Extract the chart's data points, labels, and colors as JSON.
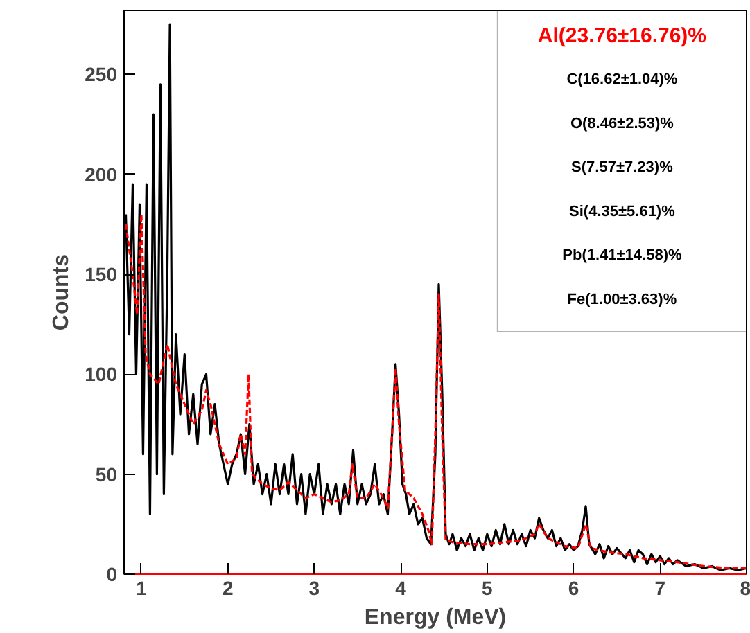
{
  "chart_data": {
    "type": "line",
    "xlabel": "Energy (MeV)",
    "ylabel": "Counts",
    "xlim": [
      0.8,
      8
    ],
    "ylim": [
      0,
      282
    ],
    "xticks": [
      1,
      2,
      3,
      4,
      5,
      6,
      7,
      8
    ],
    "yticks": [
      0,
      50,
      100,
      150,
      200,
      250
    ],
    "grid": false,
    "annotations": [
      "Al(23.76±16.76)%",
      "C(16.62±1.04)%",
      "O(8.46±2.53)%",
      "S(7.57±7.23)%",
      "Si(4.35±5.61)%",
      "Pb(1.41±14.58)%",
      "Fe(1.00±3.63)%"
    ],
    "series": [
      {
        "color": "#000000",
        "line_style": "solid",
        "x": [
          0.82,
          0.86,
          0.9,
          0.94,
          0.98,
          1.02,
          1.06,
          1.1,
          1.14,
          1.18,
          1.22,
          1.26,
          1.3,
          1.33,
          1.36,
          1.4,
          1.45,
          1.5,
          1.55,
          1.6,
          1.65,
          1.7,
          1.75,
          1.8,
          1.85,
          1.9,
          1.95,
          2.0,
          2.05,
          2.1,
          2.15,
          2.2,
          2.25,
          2.3,
          2.35,
          2.4,
          2.45,
          2.5,
          2.55,
          2.6,
          2.65,
          2.7,
          2.75,
          2.8,
          2.85,
          2.9,
          2.95,
          3.0,
          3.05,
          3.1,
          3.15,
          3.2,
          3.25,
          3.3,
          3.35,
          3.4,
          3.45,
          3.5,
          3.55,
          3.6,
          3.65,
          3.7,
          3.75,
          3.8,
          3.85,
          3.9,
          3.94,
          3.98,
          4.02,
          4.06,
          4.1,
          4.15,
          4.2,
          4.25,
          4.3,
          4.35,
          4.4,
          4.44,
          4.48,
          4.52,
          4.56,
          4.6,
          4.65,
          4.7,
          4.75,
          4.8,
          4.85,
          4.9,
          4.95,
          5.0,
          5.05,
          5.1,
          5.15,
          5.2,
          5.25,
          5.3,
          5.35,
          5.4,
          5.45,
          5.5,
          5.55,
          5.6,
          5.65,
          5.7,
          5.75,
          5.8,
          5.85,
          5.9,
          5.95,
          6.0,
          6.05,
          6.1,
          6.14,
          6.18,
          6.25,
          6.3,
          6.35,
          6.4,
          6.45,
          6.5,
          6.6,
          6.65,
          6.7,
          6.75,
          6.8,
          6.85,
          6.9,
          6.95,
          7.0,
          7.05,
          7.1,
          7.15,
          7.2,
          7.3,
          7.4,
          7.5,
          7.6,
          7.7,
          7.8,
          7.9,
          8.0
        ],
        "values": [
          180,
          120,
          195,
          100,
          185,
          60,
          195,
          30,
          230,
          50,
          245,
          40,
          150,
          275,
          60,
          120,
          80,
          110,
          70,
          90,
          65,
          95,
          100,
          70,
          85,
          65,
          55,
          45,
          55,
          60,
          70,
          50,
          75,
          45,
          55,
          40,
          50,
          35,
          55,
          40,
          55,
          40,
          60,
          35,
          50,
          30,
          50,
          40,
          55,
          30,
          45,
          35,
          45,
          30,
          45,
          35,
          62,
          35,
          45,
          35,
          40,
          55,
          35,
          40,
          30,
          70,
          105,
          80,
          45,
          40,
          30,
          35,
          25,
          28,
          18,
          15,
          60,
          145,
          90,
          20,
          15,
          20,
          12,
          18,
          14,
          20,
          12,
          18,
          12,
          20,
          14,
          22,
          15,
          25,
          15,
          22,
          15,
          20,
          14,
          22,
          18,
          28,
          22,
          18,
          22,
          14,
          18,
          12,
          15,
          12,
          14,
          22,
          34,
          15,
          10,
          15,
          8,
          14,
          10,
          13,
          8,
          12,
          6,
          12,
          10,
          5,
          10,
          6,
          9,
          5,
          8,
          5,
          7,
          4,
          5,
          3,
          4,
          2,
          3,
          2,
          3
        ]
      },
      {
        "color": "#ff0000",
        "line_style": "dashed",
        "x": [
          0.82,
          0.9,
          0.95,
          1.0,
          1.05,
          1.1,
          1.2,
          1.3,
          1.4,
          1.5,
          1.6,
          1.7,
          1.75,
          1.8,
          1.9,
          2.0,
          2.1,
          2.15,
          2.2,
          2.24,
          2.28,
          2.4,
          2.5,
          2.6,
          2.7,
          2.8,
          2.9,
          3.0,
          3.1,
          3.2,
          3.3,
          3.4,
          3.44,
          3.5,
          3.6,
          3.7,
          3.8,
          3.85,
          3.9,
          3.94,
          3.98,
          4.05,
          4.15,
          4.25,
          4.32,
          4.36,
          4.4,
          4.44,
          4.48,
          4.52,
          4.6,
          4.8,
          5.0,
          5.2,
          5.4,
          5.55,
          5.6,
          5.7,
          5.9,
          6.05,
          6.14,
          6.2,
          6.4,
          6.6,
          6.8,
          7.0,
          7.2,
          7.5,
          7.8,
          8.0
        ],
        "values": [
          175,
          150,
          130,
          180,
          110,
          100,
          95,
          115,
          95,
          85,
          75,
          82,
          92,
          85,
          65,
          55,
          58,
          70,
          60,
          100,
          50,
          45,
          43,
          42,
          46,
          42,
          38,
          40,
          38,
          36,
          37,
          40,
          55,
          38,
          38,
          45,
          38,
          33,
          70,
          103,
          75,
          42,
          38,
          30,
          22,
          15,
          70,
          140,
          70,
          17,
          16,
          15,
          15,
          16,
          17,
          20,
          25,
          18,
          14,
          13,
          25,
          13,
          11,
          10,
          8,
          7,
          6,
          4,
          3,
          3
        ]
      }
    ]
  }
}
